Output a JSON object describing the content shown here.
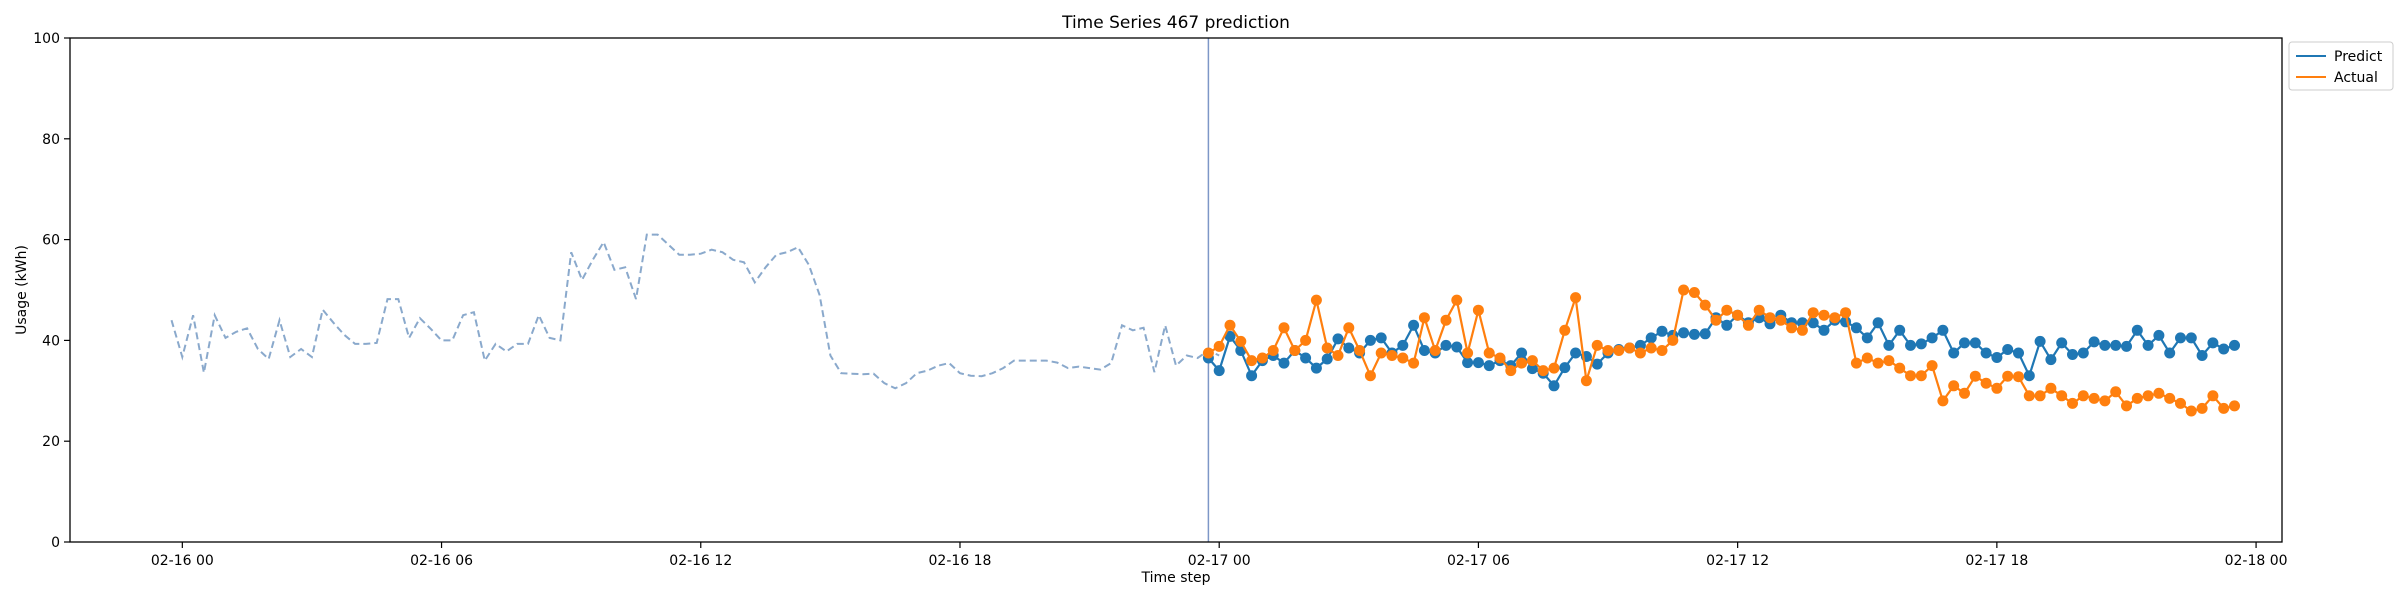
{
  "chart_data": {
    "type": "line",
    "title": "Time Series 467 prediction",
    "xlabel": "Time step",
    "ylabel": "Usage (kWh)",
    "ylim": [
      0,
      100
    ],
    "xlim": [
      "2024-02-15T21:24",
      "2024-02-18T00:36"
    ],
    "yticks": [
      0,
      20,
      40,
      60,
      80,
      100
    ],
    "xticks": [
      {
        "t": "2024-02-16T00:00",
        "label": "02-16 00"
      },
      {
        "t": "2024-02-16T06:00",
        "label": "02-16 06"
      },
      {
        "t": "2024-02-16T12:00",
        "label": "02-16 12"
      },
      {
        "t": "2024-02-16T18:00",
        "label": "02-16 18"
      },
      {
        "t": "2024-02-17T00:00",
        "label": "02-17 00"
      },
      {
        "t": "2024-02-17T06:00",
        "label": "02-17 06"
      },
      {
        "t": "2024-02-17T12:00",
        "label": "02-17 12"
      },
      {
        "t": "2024-02-17T18:00",
        "label": "02-17 18"
      },
      {
        "t": "2024-02-18T00:00",
        "label": "02-18 00"
      }
    ],
    "forecast_start": "2024-02-16T23:45",
    "grid": false,
    "legend_position": "outside-top-right",
    "history": {
      "start": "2024-02-15T23:45",
      "step_minutes": 15,
      "color": "#8aa9cc",
      "values": [
        44.0,
        36.7,
        45.0,
        33.6,
        45.0,
        40.5,
        41.7,
        42.4,
        38.3,
        36.3,
        44.0,
        36.7,
        38.3,
        36.7,
        46.1,
        43.5,
        41.1,
        39.3,
        39.3,
        39.5,
        48.2,
        48.2,
        40.5,
        44.4,
        42.3,
        40.0,
        40.0,
        45.0,
        45.6,
        36.0,
        39.3,
        37.8,
        39.3,
        39.3,
        45.0,
        40.5,
        40.0,
        57.5,
        52.0,
        56.0,
        59.5,
        54.0,
        54.5,
        48.2,
        61.0,
        61.0,
        59.0,
        57.0,
        57.0,
        57.2,
        58.0,
        57.5,
        56.0,
        55.5,
        51.5,
        54.5,
        57.0,
        57.5,
        58.5,
        55.0,
        49.0,
        37.0,
        33.5,
        33.4,
        33.3,
        33.4,
        31.5,
        30.5,
        31.5,
        33.5,
        34.0,
        35.0,
        35.5,
        33.5,
        33.0,
        32.9,
        33.5,
        34.5,
        36.0,
        36.0,
        36.0,
        36.0,
        35.6,
        34.5,
        34.8,
        34.5,
        34.2,
        35.5,
        43.0,
        42.0,
        42.5,
        33.7,
        43.0,
        35.0,
        37.0,
        36.5,
        38.0,
        37.0
      ]
    },
    "series": [
      {
        "name": "Predict",
        "color": "#1f77b4",
        "start": "2024-02-16T23:45",
        "step_minutes": 15,
        "values": [
          36.5,
          34.0,
          40.8,
          38.0,
          33.0,
          36.0,
          37.0,
          35.5,
          38.0,
          36.5,
          34.5,
          36.3,
          40.3,
          38.5,
          37.5,
          40.0,
          40.5,
          37.5,
          39.0,
          43.0,
          38.0,
          37.5,
          39.0,
          38.7,
          35.6,
          35.6,
          35.0,
          36.0,
          35.0,
          37.5,
          34.4,
          33.5,
          31.0,
          34.6,
          37.5,
          36.8,
          35.3,
          37.5,
          38.2,
          38.5,
          39.0,
          40.5,
          41.8,
          41.0,
          41.5,
          41.2,
          41.3,
          44.5,
          43.0,
          45.0,
          43.5,
          44.5,
          43.3,
          45.0,
          43.5,
          43.5,
          43.5,
          42.0,
          44.0,
          43.7,
          42.5,
          40.5,
          43.5,
          39.0,
          42.0,
          39.0,
          39.3,
          40.5,
          42.0,
          37.5,
          39.5,
          39.5,
          37.5,
          36.6,
          38.2,
          37.5,
          33.0,
          39.8,
          36.2,
          39.5,
          37.2,
          37.5,
          39.7,
          39.0,
          39.0,
          38.8,
          42.0,
          39.0,
          41.0,
          37.5,
          40.5,
          40.5,
          37.0,
          39.5,
          38.3,
          39.0
        ]
      },
      {
        "name": "Actual",
        "color": "#ff7f0e",
        "start": "2024-02-16T23:45",
        "step_minutes": 15,
        "values": [
          37.5,
          38.8,
          43.0,
          39.8,
          36.0,
          36.5,
          38.0,
          42.5,
          38.0,
          40.0,
          48.0,
          38.5,
          37.0,
          42.5,
          38.0,
          33.0,
          37.5,
          37.0,
          36.5,
          35.5,
          44.5,
          38.0,
          44.0,
          48.0,
          37.5,
          46.0,
          37.5,
          36.5,
          34.0,
          35.5,
          36.0,
          34.0,
          34.5,
          42.0,
          48.5,
          32.0,
          39.0,
          38.0,
          38.0,
          38.5,
          37.5,
          38.5,
          38.0,
          40.0,
          50.0,
          49.5,
          47.0,
          44.0,
          46.0,
          45.0,
          43.0,
          46.0,
          44.5,
          44.0,
          42.5,
          42.0,
          45.5,
          45.0,
          44.5,
          45.5,
          35.5,
          36.5,
          35.5,
          36.0,
          34.5,
          33.0,
          33.0,
          35.0,
          28.0,
          31.0,
          29.5,
          32.9,
          31.5,
          30.5,
          32.9,
          32.8,
          29.0,
          29.0,
          30.5,
          29.0,
          27.5,
          29.0,
          28.5,
          28.0,
          29.8,
          27.0,
          28.5,
          29.0,
          29.5,
          28.5,
          27.5,
          26.0,
          26.5,
          29.0,
          26.5,
          27.0
        ]
      }
    ]
  }
}
